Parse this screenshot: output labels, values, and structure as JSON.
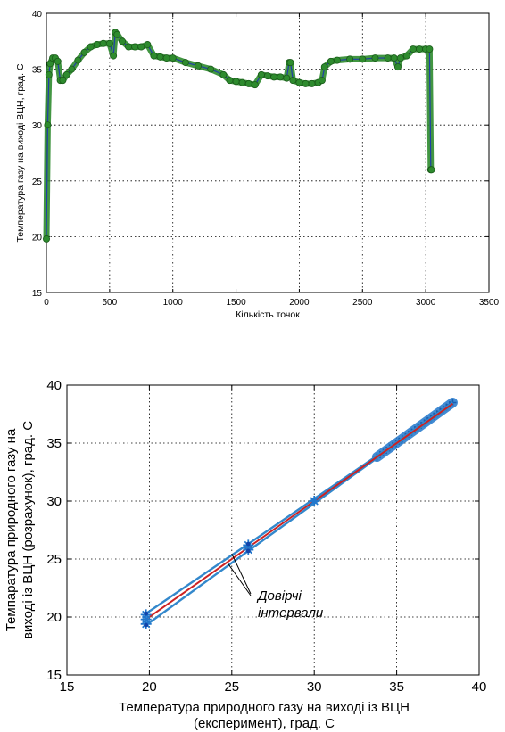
{
  "chart_data": [
    {
      "type": "line",
      "xlabel": "Кількість точок",
      "ylabel": "Температура газу на виході ВЦН, град. С",
      "xlim": [
        0,
        3500
      ],
      "ylim": [
        15,
        40
      ],
      "xticks": [
        "0",
        "500",
        "1000",
        "1500",
        "2000",
        "2500",
        "3000",
        "3500"
      ],
      "yticks": [
        "15",
        "20",
        "25",
        "30",
        "35",
        "40"
      ],
      "grid": true,
      "colors": {
        "line": "#1f3fa6",
        "marker": "#2e8b2e"
      },
      "series": [
        {
          "x": [
            0,
            10,
            20,
            30,
            50,
            70,
            90,
            110,
            130,
            160,
            200,
            250,
            300,
            350,
            400,
            450,
            500,
            530,
            545,
            560,
            600,
            650,
            700,
            750,
            800,
            850,
            900,
            950,
            1000,
            1100,
            1200,
            1300,
            1400,
            1450,
            1500,
            1550,
            1600,
            1650,
            1700,
            1750,
            1800,
            1850,
            1900,
            1920,
            1930,
            1950,
            2000,
            2050,
            2100,
            2150,
            2180,
            2200,
            2250,
            2300,
            2400,
            2500,
            2600,
            2700,
            2750,
            2780,
            2800,
            2850,
            2900,
            2950,
            3000,
            3030,
            3040,
            3045
          ],
          "y": [
            19.8,
            30.0,
            34.5,
            35.5,
            36.0,
            36.0,
            35.7,
            34.0,
            34.0,
            34.5,
            35.0,
            35.8,
            36.5,
            37.0,
            37.2,
            37.3,
            37.3,
            36.2,
            38.3,
            38.1,
            37.5,
            37.0,
            37.0,
            37.0,
            37.2,
            36.2,
            36.1,
            36.0,
            36.0,
            35.6,
            35.3,
            35.0,
            34.5,
            34.0,
            33.9,
            33.8,
            33.7,
            33.6,
            34.5,
            34.4,
            34.3,
            34.3,
            34.2,
            35.6,
            35.6,
            34.0,
            33.8,
            33.7,
            33.7,
            33.8,
            34.0,
            35.2,
            35.7,
            35.8,
            35.9,
            35.9,
            36.0,
            36.0,
            36.0,
            35.2,
            36.0,
            36.2,
            36.8,
            36.8,
            36.8,
            36.8,
            26.0,
            26.0
          ]
        }
      ]
    },
    {
      "type": "scatter",
      "xlabel_lines": [
        "Температура природного газу на виході із ВЦН",
        "(експеримент), град. С"
      ],
      "ylabel_lines": [
        "Темпаратура природного газу на",
        "виході із ВЦН (розрахунок), град. С"
      ],
      "xlim": [
        15,
        40
      ],
      "ylim": [
        15,
        40
      ],
      "xticks": [
        "15",
        "20",
        "25",
        "30",
        "35",
        "40"
      ],
      "yticks": [
        "15",
        "20",
        "25",
        "30",
        "35",
        "40"
      ],
      "grid": true,
      "annotation": [
        "Довірчі",
        "інтервали"
      ],
      "colors": {
        "fit": "#cc2222",
        "interval": "#3388cc",
        "points": "#2277cc",
        "marker": "#1144aa"
      },
      "fit_line": {
        "x": [
          19.8,
          38.4
        ],
        "y": [
          19.8,
          38.4
        ]
      },
      "upper_interval": {
        "x": [
          19.8,
          26.0,
          30.0,
          33.8,
          38.4
        ],
        "y": [
          20.3,
          26.3,
          30.2,
          33.9,
          38.5
        ]
      },
      "lower_interval": {
        "x": [
          19.8,
          26.0,
          30.0,
          33.8,
          38.4
        ],
        "y": [
          19.3,
          25.7,
          29.8,
          33.7,
          38.3
        ]
      },
      "cluster": {
        "x_range": [
          33.8,
          38.4
        ],
        "y_range": [
          33.8,
          38.5
        ]
      },
      "points": {
        "x": [
          19.8,
          19.8,
          19.8,
          26.0,
          26.0,
          30.0
        ],
        "y": [
          20.2,
          19.8,
          19.4,
          26.2,
          25.8,
          30.0
        ]
      }
    }
  ]
}
